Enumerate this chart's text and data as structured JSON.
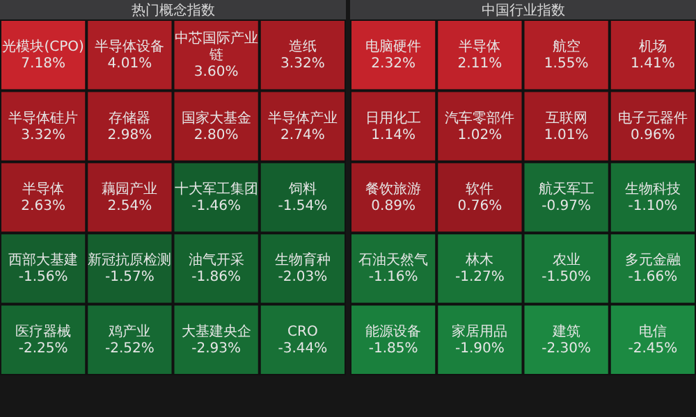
{
  "chart_data": [
    {
      "type": "other",
      "title": "热门概念指数",
      "categories": [
        "光模块(CPO)",
        "半导体设备",
        "中芯国际产业链",
        "造纸",
        "半导体硅片",
        "存储器",
        "国家大基金",
        "半导体产业",
        "半导体",
        "藕园产业",
        "十大军工集团",
        "饲料",
        "西部大基建",
        "新冠抗原检测",
        "油气开采",
        "生物育种",
        "医疗器械",
        "鸡产业",
        "大基建央企",
        "CRO"
      ],
      "values": [
        7.18,
        4.01,
        3.6,
        3.32,
        3.32,
        2.98,
        2.8,
        2.74,
        2.63,
        2.54,
        -1.46,
        -1.54,
        -1.56,
        -1.57,
        -1.86,
        -2.03,
        -2.25,
        -2.52,
        -2.93,
        -3.44
      ],
      "value_labels": [
        "7.18%",
        "4.01%",
        "3.60%",
        "3.32%",
        "3.32%",
        "2.98%",
        "2.80%",
        "2.74%",
        "2.63%",
        "2.54%",
        "-1.46%",
        "-1.54%",
        "-1.56%",
        "-1.57%",
        "-1.86%",
        "-2.03%",
        "-2.25%",
        "-2.52%",
        "-2.93%",
        "-3.44%"
      ]
    },
    {
      "type": "other",
      "title": "中国行业指数",
      "categories": [
        "电脑硬件",
        "半导体",
        "航空",
        "机场",
        "日用化工",
        "汽车零部件",
        "互联网",
        "电子元器件",
        "餐饮旅游",
        "软件",
        "航天军工",
        "生物科技",
        "石油天然气",
        "林木",
        "农业",
        "多元金融",
        "能源设备",
        "家居用品",
        "建筑",
        "电信"
      ],
      "values": [
        2.32,
        2.11,
        1.55,
        1.41,
        1.14,
        1.02,
        1.01,
        0.96,
        0.89,
        0.76,
        -0.97,
        -1.1,
        -1.16,
        -1.27,
        -1.5,
        -1.66,
        -1.85,
        -1.9,
        -2.3,
        -2.45
      ],
      "value_labels": [
        "2.32%",
        "2.11%",
        "1.55%",
        "1.41%",
        "1.14%",
        "1.02%",
        "1.01%",
        "0.96%",
        "0.89%",
        "0.76%",
        "-0.97%",
        "-1.10%",
        "-1.16%",
        "-1.27%",
        "-1.50%",
        "-1.66%",
        "-1.85%",
        "-1.90%",
        "-2.30%",
        "-2.45%"
      ]
    }
  ]
}
